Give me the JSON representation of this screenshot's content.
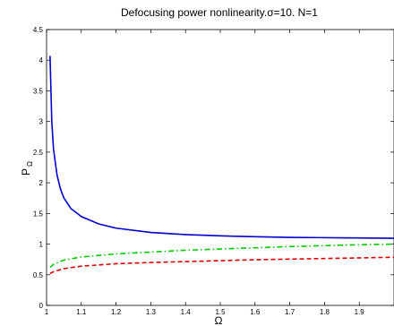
{
  "chart_data": {
    "type": "line",
    "title": "Defocusing power nonlinearity.σ=10. N=1",
    "xlabel": "Ω",
    "ylabel": "P",
    "ylabel_subscript": "Ω",
    "xlim": [
      1.0,
      2.0
    ],
    "ylim": [
      0,
      4.5
    ],
    "xticks": [
      "1",
      "1.1",
      "1.2",
      "1.3",
      "1.4",
      "1.5",
      "1.6",
      "1.7",
      "1.8",
      "1.9"
    ],
    "xtick_values": [
      1.0,
      1.1,
      1.2,
      1.3,
      1.4,
      1.5,
      1.6,
      1.7,
      1.8,
      1.9
    ],
    "yticks": [
      "0",
      "0.5",
      "1",
      "1.5",
      "2",
      "2.5",
      "3",
      "3.5",
      "4",
      "4.5"
    ],
    "ytick_values": [
      0,
      0.5,
      1,
      1.5,
      2,
      2.5,
      3,
      3.5,
      4,
      4.5
    ],
    "grid": false,
    "series": [
      {
        "color": "#0000cc",
        "style": "solid",
        "x": [
          1.01,
          1.015,
          1.02,
          1.03,
          1.04,
          1.05,
          1.07,
          1.1,
          1.15,
          1.2,
          1.3,
          1.4,
          1.5,
          1.6,
          1.7,
          1.8,
          1.9,
          2.0
        ],
        "y": [
          4.07,
          3.0,
          2.55,
          2.13,
          1.9,
          1.75,
          1.58,
          1.45,
          1.33,
          1.26,
          1.19,
          1.155,
          1.135,
          1.12,
          1.11,
          1.105,
          1.1,
          1.095
        ]
      },
      {
        "color": "#00cc00",
        "style": "dash-dot",
        "x": [
          1.01,
          1.02,
          1.05,
          1.1,
          1.2,
          1.3,
          1.4,
          1.5,
          1.6,
          1.7,
          1.8,
          1.9,
          2.0
        ],
        "y": [
          0.62,
          0.67,
          0.74,
          0.79,
          0.84,
          0.87,
          0.9,
          0.92,
          0.94,
          0.96,
          0.975,
          0.99,
          1.0
        ]
      },
      {
        "color": "#dd0000",
        "style": "dashed",
        "x": [
          1.01,
          1.02,
          1.05,
          1.1,
          1.2,
          1.3,
          1.4,
          1.5,
          1.6,
          1.7,
          1.8,
          1.9,
          2.0
        ],
        "y": [
          0.52,
          0.55,
          0.6,
          0.64,
          0.68,
          0.7,
          0.715,
          0.73,
          0.745,
          0.755,
          0.765,
          0.775,
          0.785
        ]
      }
    ]
  }
}
